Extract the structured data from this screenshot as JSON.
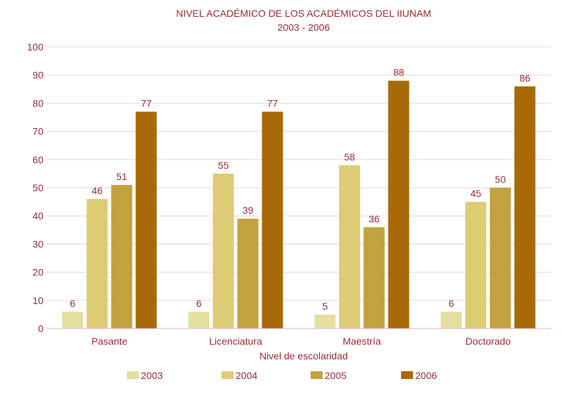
{
  "chart_data": {
    "type": "bar",
    "title": "NIVEL ACADÉMICO DE LOS ACADÉMICOS DEL IIUNAM",
    "subtitle": "2003 - 2006",
    "xlabel": "Nivel de escolaridad",
    "ylabel": "",
    "ylim": [
      0,
      100
    ],
    "yticks": [
      0,
      10,
      20,
      30,
      40,
      50,
      60,
      70,
      80,
      90,
      100
    ],
    "grid": true,
    "legend": "bottom",
    "categories": [
      "Pasante",
      "Licenciatura",
      "Maestría",
      "Doctorado"
    ],
    "series": [
      {
        "name": "2003",
        "color": "#e5df9f",
        "values": [
          6,
          6,
          5,
          6
        ]
      },
      {
        "name": "2004",
        "color": "#decb76",
        "values": [
          46,
          55,
          58,
          45
        ]
      },
      {
        "name": "2005",
        "color": "#c2a23f",
        "values": [
          51,
          39,
          36,
          50
        ]
      },
      {
        "name": "2006",
        "color": "#a86a08",
        "values": [
          77,
          77,
          88,
          86
        ]
      }
    ]
  }
}
